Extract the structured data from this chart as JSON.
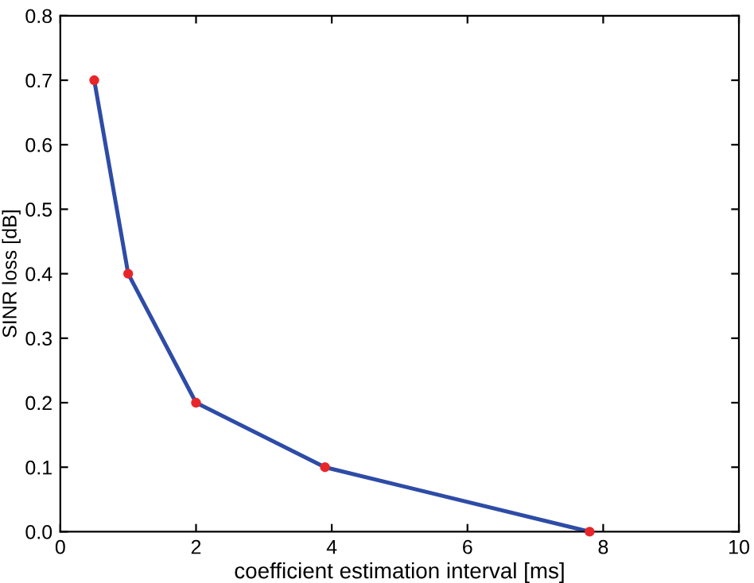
{
  "chart_data": {
    "type": "line",
    "xlabel": "coefficient estimation interval [ms]",
    "ylabel": "SINR loss [dB]",
    "x": [
      0.5,
      1,
      2,
      3.9,
      7.8
    ],
    "series": [
      {
        "color": "#2e4ca6",
        "values": [
          0.7,
          0.4,
          0.2,
          0.1,
          0.0
        ]
      },
      {
        "type": "scatter",
        "color": "#e8262a",
        "marker": "circle",
        "values": [
          0.7,
          0.4,
          0.2,
          0.1,
          0.0
        ]
      }
    ],
    "xlim": [
      0,
      10
    ],
    "xticks": [
      0,
      2,
      4,
      6,
      8,
      10
    ],
    "ylim": [
      0,
      0.8
    ],
    "yticks": [
      {
        "value": 0,
        "label": "0.0"
      },
      {
        "value": 0.1,
        "label": "0.1"
      },
      {
        "value": 0.2,
        "label": "0.2"
      },
      {
        "value": 0.3,
        "label": "0.3"
      },
      {
        "value": 0.4,
        "label": "0.4"
      },
      {
        "value": 0.5,
        "label": "0.5"
      },
      {
        "value": 0.6,
        "label": "0.6"
      },
      {
        "value": 0.7,
        "label": "0.7"
      },
      {
        "value": 0.8,
        "label": "0.8"
      }
    ],
    "grid": false,
    "legend": false
  }
}
